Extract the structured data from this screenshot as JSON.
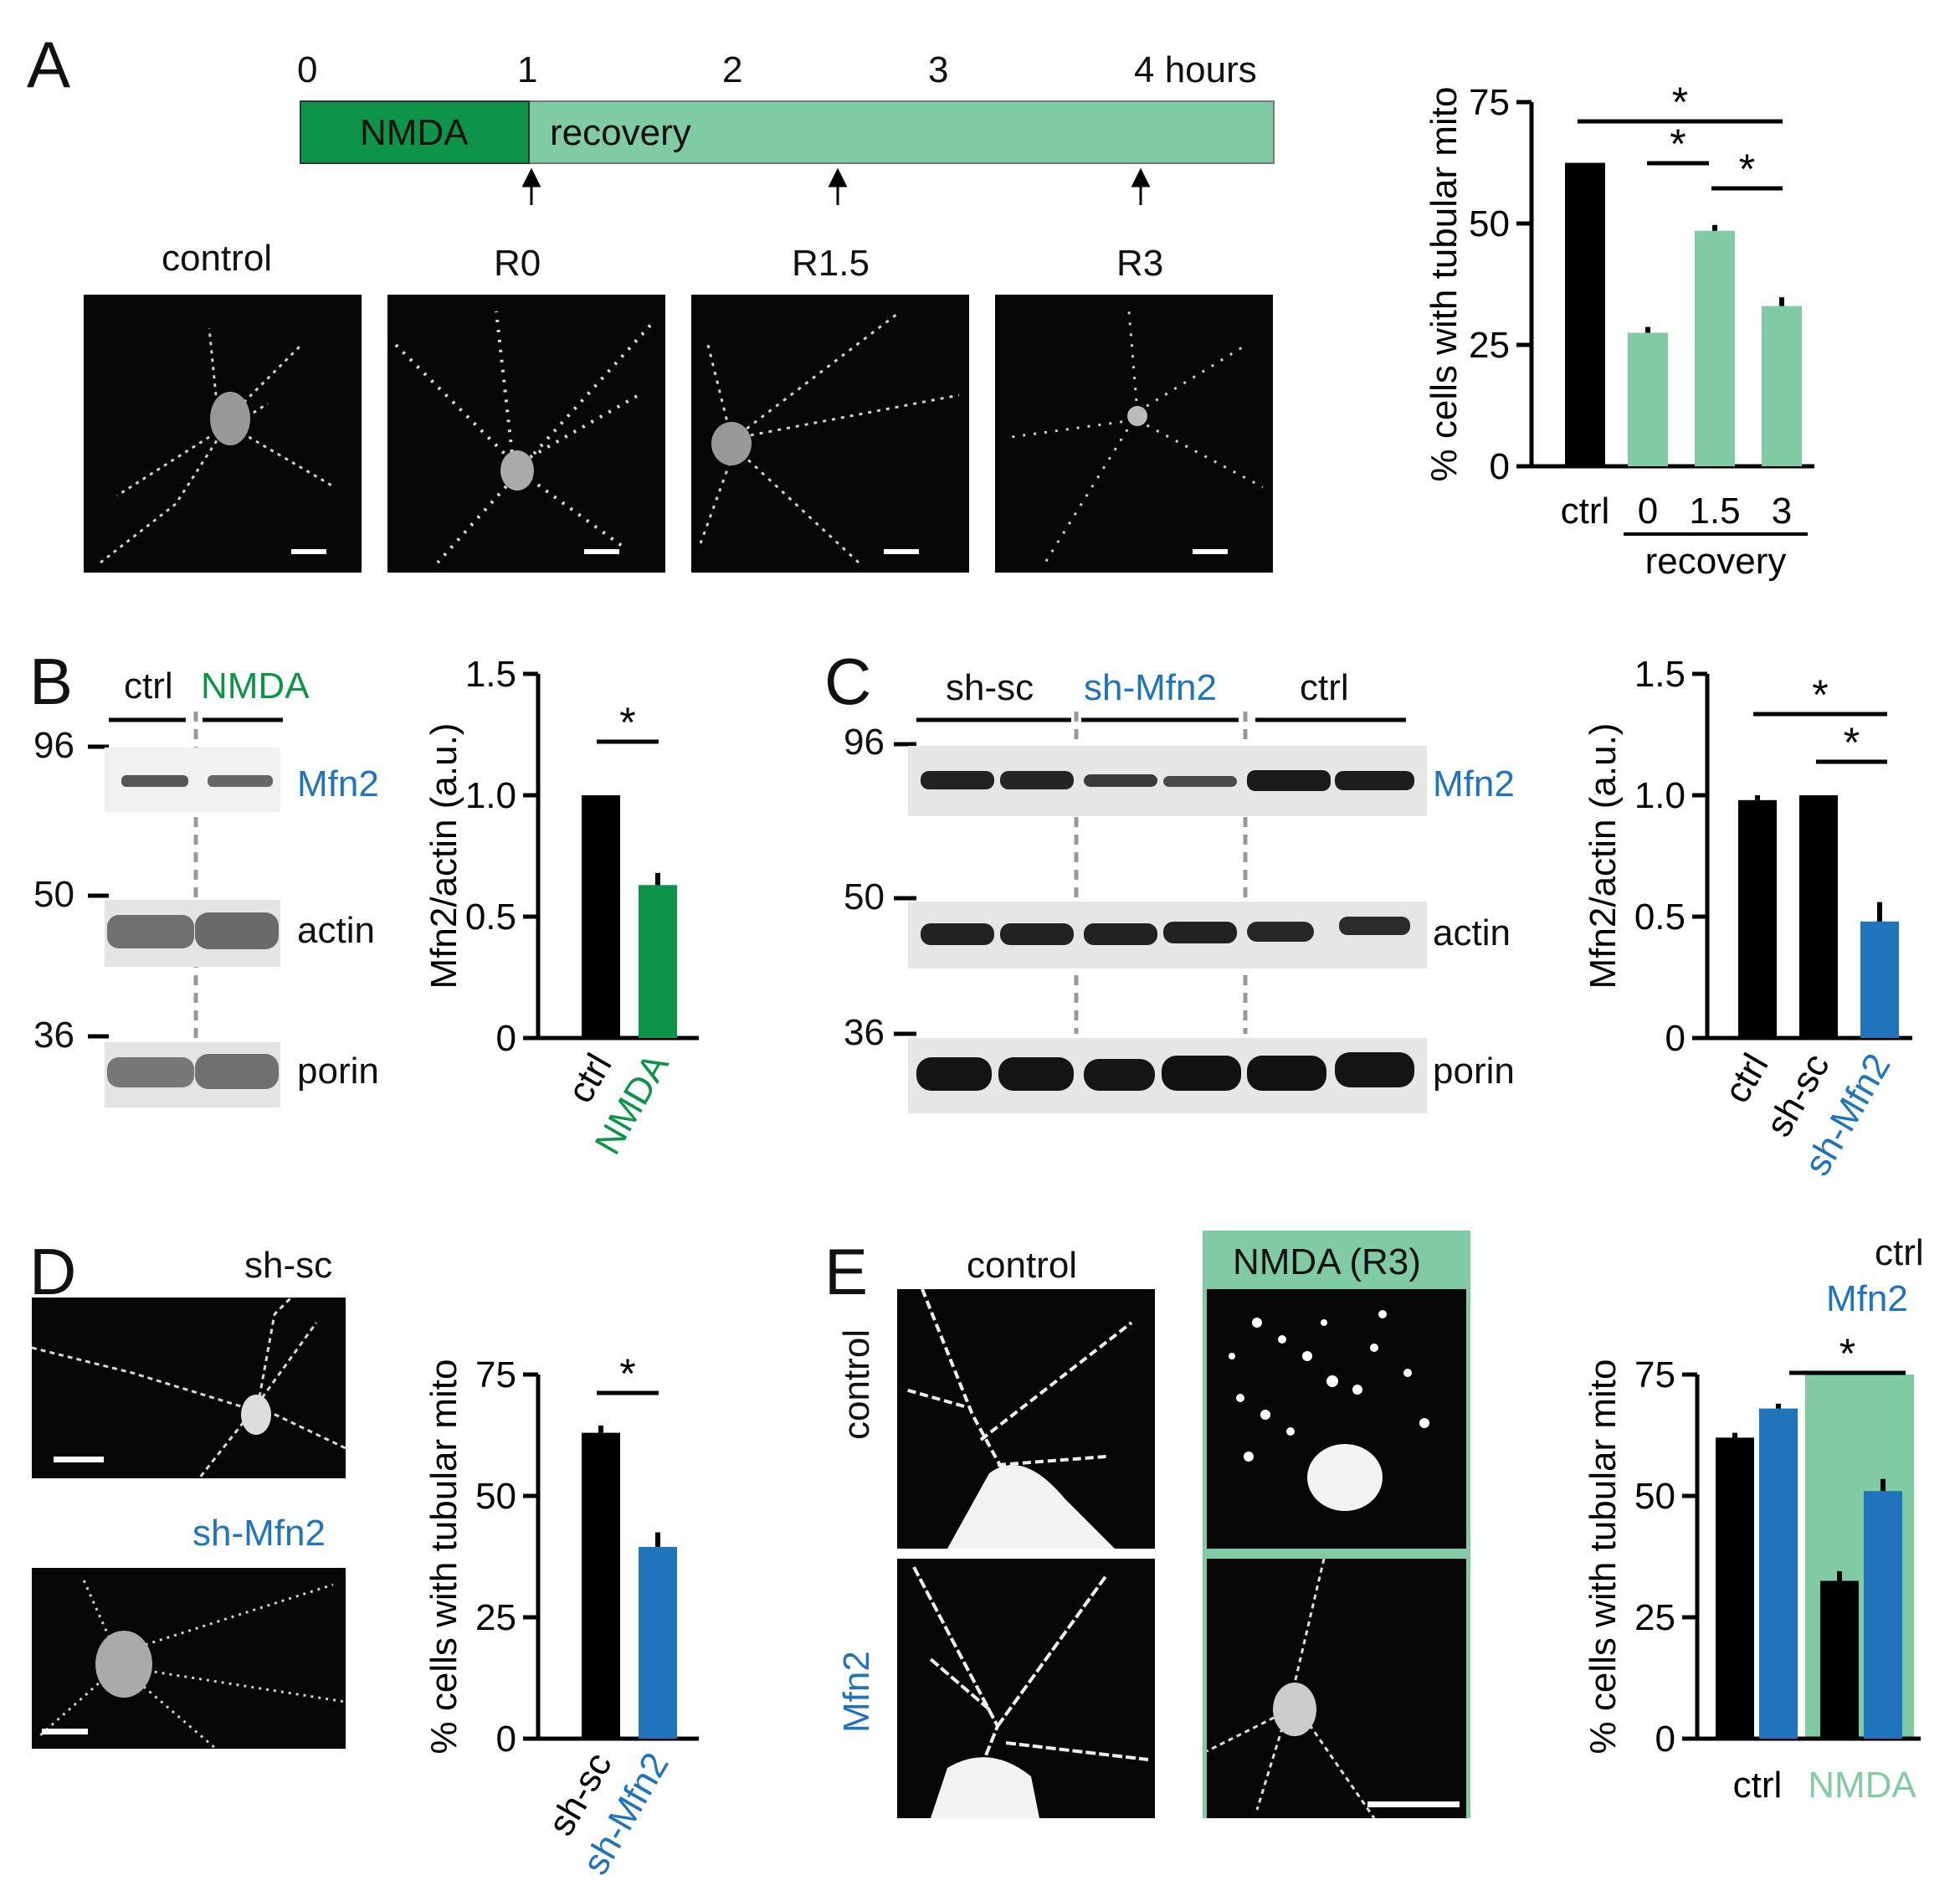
{
  "panels": {
    "A": {
      "letter": "A",
      "timeline": {
        "ticks": [
          "0",
          "1",
          "2",
          "3",
          "4 hours"
        ],
        "nmda_label": "NMDA",
        "recovery_label": "recovery",
        "arrows": [
          "R0",
          "R1.5",
          "R3"
        ],
        "colors": {
          "nmda": "#0e9448",
          "recovery": "#80cba3"
        }
      },
      "images": [
        "control",
        "R0",
        "R1.5",
        "R3"
      ]
    },
    "B": {
      "letter": "B",
      "lanes": [
        "ctrl",
        "NMDA"
      ],
      "markers": [
        "96",
        "50",
        "36"
      ],
      "bands": [
        "Mfn2",
        "actin",
        "porin"
      ]
    },
    "C": {
      "letter": "C",
      "lanes": [
        "sh-sc",
        "sh-Mfn2",
        "ctrl"
      ],
      "markers": [
        "96",
        "50",
        "36"
      ],
      "bands": [
        "Mfn2",
        "actin",
        "porin"
      ]
    },
    "D": {
      "letter": "D",
      "images": [
        "sh-sc",
        "sh-Mfn2"
      ]
    },
    "E": {
      "letter": "E",
      "columns": [
        "control",
        "NMDA (R3)"
      ],
      "rows": [
        "control",
        "Mfn2"
      ],
      "legend": [
        "ctrl",
        "Mfn2"
      ]
    }
  },
  "chart_data": [
    {
      "id": "A",
      "type": "bar",
      "ylabel": "% cells with tubular mito",
      "ylim": [
        0,
        75
      ],
      "yticks": [
        0,
        25,
        50,
        75
      ],
      "categories": [
        "ctrl",
        "0",
        "1.5",
        "3"
      ],
      "group_label": "recovery",
      "values": [
        62.5,
        27.5,
        48.5,
        33
      ],
      "errors": [
        0,
        1.2,
        1.2,
        1.8
      ],
      "colors": [
        "#000000",
        "#80cba3",
        "#80cba3",
        "#80cba3"
      ],
      "significance": [
        "*",
        "*",
        "*"
      ]
    },
    {
      "id": "B",
      "type": "bar",
      "ylabel": "Mfn2/actin (a.u.)",
      "ylim": [
        0,
        1.5
      ],
      "yticks": [
        "0",
        "0.5",
        "1.0",
        "1.5"
      ],
      "categories": [
        "ctrl",
        "NMDA"
      ],
      "values": [
        1.0,
        0.63
      ],
      "errors": [
        0,
        0.05
      ],
      "colors": [
        "#000000",
        "#0e9448"
      ],
      "significance": [
        "*"
      ]
    },
    {
      "id": "C",
      "type": "bar",
      "ylabel": "Mfn2/actin (a.u.)",
      "ylim": [
        0,
        1.5
      ],
      "yticks": [
        "0",
        "0.5",
        "1.0",
        "1.5"
      ],
      "categories": [
        "ctrl",
        "sh-sc",
        "sh-Mfn2"
      ],
      "values": [
        0.98,
        1.0,
        0.48
      ],
      "errors": [
        0.02,
        0,
        0.08
      ],
      "colors": [
        "#000000",
        "#000000",
        "#1f74bc"
      ],
      "significance": [
        "*",
        "*"
      ]
    },
    {
      "id": "D",
      "type": "bar",
      "ylabel": "% cells with tubular mito",
      "ylim": [
        0,
        75
      ],
      "yticks": [
        0,
        25,
        50,
        75
      ],
      "categories": [
        "sh-sc",
        "sh-Mfn2"
      ],
      "values": [
        63,
        39.5
      ],
      "errors": [
        1.5,
        3
      ],
      "colors": [
        "#000000",
        "#1f74bc"
      ],
      "significance": [
        "*"
      ]
    },
    {
      "id": "E",
      "type": "bar",
      "ylabel": "% cells with tubular mito",
      "ylim": [
        0,
        75
      ],
      "yticks": [
        0,
        25,
        50,
        75
      ],
      "categories": [
        "ctrl",
        "NMDA"
      ],
      "series": [
        {
          "name": "ctrl",
          "values": [
            62,
            32.5
          ],
          "errors": [
            1,
            2
          ],
          "color": "#000000"
        },
        {
          "name": "Mfn2",
          "values": [
            68,
            51
          ],
          "errors": [
            1,
            2.5
          ],
          "color": "#1f74bc"
        }
      ],
      "significance": [
        "*"
      ]
    }
  ]
}
